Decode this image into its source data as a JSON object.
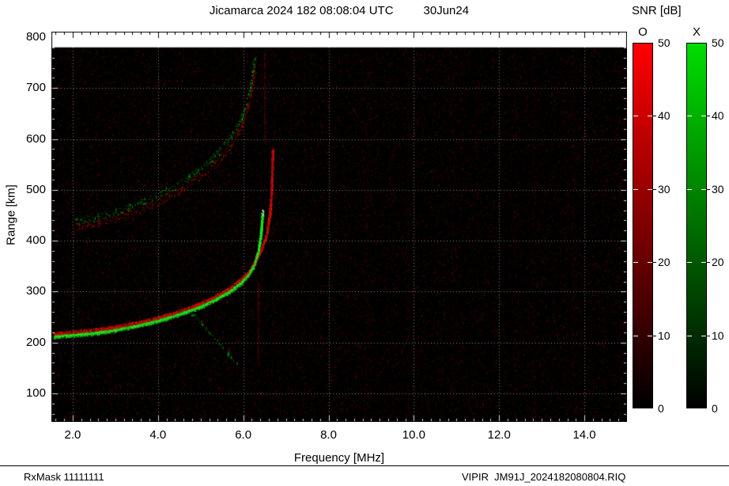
{
  "header": {
    "title_left": "Jicamarca 2024 182 08:08:04 UTC",
    "title_right": "30Jun24"
  },
  "axes": {
    "x_title": "Frequency [MHz]",
    "y_title": "Range [km]"
  },
  "colorbar_panel": {
    "title": "SNR [dB]",
    "bars": [
      {
        "label": "O",
        "low_color": "#000000",
        "high_color": "#ff0000",
        "min": 0,
        "max": 50,
        "ticks": [
          0,
          10,
          20,
          30,
          40,
          50
        ]
      },
      {
        "label": "X",
        "low_color": "#000000",
        "high_color": "#00dd00",
        "min": 0,
        "max": 50,
        "ticks": [
          0,
          10,
          20,
          30,
          40,
          50
        ]
      }
    ]
  },
  "footer": {
    "left": "RxMask 11111111",
    "right": "VIPIR  JM91J_2024182080804.RIQ"
  },
  "chart_data": {
    "type": "heatmap",
    "title": "Jicamarca 2024 182 08:08:04 UTC 30Jun24",
    "xlabel": "Frequency [MHz]",
    "ylabel": "Range [km]",
    "xlim": [
      1.5,
      15.0
    ],
    "ylim": [
      44,
      800
    ],
    "x_ticks": [
      2.0,
      4.0,
      6.0,
      8.0,
      10.0,
      12.0,
      14.0
    ],
    "x_tick_labels": [
      "2.0",
      "4.0",
      "6.0",
      "8.0",
      "10.0",
      "12.0",
      "14.0"
    ],
    "y_ticks": [
      100,
      200,
      300,
      400,
      500,
      600,
      700,
      800
    ],
    "y_tick_labels": [
      "100",
      "200",
      "300",
      "400",
      "500",
      "600",
      "700",
      "800"
    ],
    "background": "#000000",
    "grid": {
      "show": true,
      "color": "#ffffff",
      "style": "dotted"
    },
    "data_top_km": 780,
    "snr_scale": {
      "min": 0,
      "max": 50,
      "units": "dB",
      "o_color": "#ff0000",
      "x_color": "#00dd00"
    },
    "series": [
      {
        "name": "X-mode main trace",
        "mode": "X",
        "color": "green",
        "thickness": 5,
        "density": 7,
        "points": [
          [
            1.55,
            212
          ],
          [
            2.0,
            215
          ],
          [
            2.5,
            219
          ],
          [
            3.0,
            225
          ],
          [
            3.5,
            233
          ],
          [
            4.0,
            243
          ],
          [
            4.5,
            256
          ],
          [
            5.0,
            271
          ],
          [
            5.4,
            287
          ],
          [
            5.7,
            302
          ],
          [
            5.95,
            318
          ],
          [
            6.1,
            332
          ],
          [
            6.25,
            352
          ],
          [
            6.35,
            378
          ],
          [
            6.41,
            410
          ],
          [
            6.44,
            440
          ],
          [
            6.45,
            456
          ]
        ]
      },
      {
        "name": "O-mode main trace",
        "mode": "O",
        "color": "red",
        "thickness": 4,
        "density": 5,
        "points": [
          [
            1.55,
            218
          ],
          [
            2.0,
            221
          ],
          [
            2.5,
            225
          ],
          [
            3.0,
            231
          ],
          [
            3.5,
            239
          ],
          [
            4.0,
            249
          ],
          [
            4.5,
            262
          ],
          [
            5.0,
            277
          ],
          [
            5.4,
            293
          ],
          [
            5.7,
            308
          ],
          [
            5.95,
            325
          ],
          [
            6.15,
            342
          ],
          [
            6.3,
            362
          ],
          [
            6.45,
            388
          ],
          [
            6.55,
            415
          ],
          [
            6.62,
            450
          ],
          [
            6.66,
            495
          ],
          [
            6.68,
            540
          ],
          [
            6.69,
            582
          ]
        ]
      },
      {
        "name": "X-mode second hop",
        "mode": "X",
        "color": "green-dim",
        "thickness": 9,
        "density": 1.0,
        "points": [
          [
            2.05,
            438
          ],
          [
            2.5,
            446
          ],
          [
            3.0,
            457
          ],
          [
            3.5,
            471
          ],
          [
            4.0,
            489
          ],
          [
            4.5,
            512
          ],
          [
            5.0,
            541
          ],
          [
            5.4,
            572
          ],
          [
            5.7,
            602
          ],
          [
            5.95,
            638
          ],
          [
            6.1,
            676
          ],
          [
            6.2,
            716
          ],
          [
            6.26,
            758
          ]
        ]
      },
      {
        "name": "O-mode second hop",
        "mode": "O",
        "color": "red-dim",
        "thickness": 9,
        "density": 1.0,
        "points": [
          [
            2.05,
            427
          ],
          [
            2.5,
            434
          ],
          [
            3.0,
            445
          ],
          [
            3.5,
            459
          ],
          [
            4.0,
            476
          ],
          [
            4.5,
            498
          ],
          [
            5.0,
            527
          ],
          [
            5.4,
            557
          ],
          [
            5.7,
            587
          ],
          [
            5.95,
            622
          ],
          [
            6.1,
            660
          ],
          [
            6.2,
            700
          ],
          [
            6.26,
            742
          ]
        ]
      },
      {
        "name": "descending spur",
        "mode": "X",
        "color": "green-dim",
        "thickness": 3,
        "density": 0.6,
        "points": [
          [
            4.75,
            262
          ],
          [
            5.0,
            240
          ],
          [
            5.2,
            221
          ],
          [
            5.45,
            197
          ],
          [
            5.7,
            173
          ],
          [
            5.85,
            158
          ]
        ]
      }
    ],
    "highlight": {
      "name": "X-trace cusp",
      "f": 6.45,
      "km": 456,
      "color": "#ffffff"
    },
    "faint_columns": [
      {
        "f": 6.5,
        "range": [
          590,
          770
        ]
      },
      {
        "f": 6.35,
        "range": [
          160,
          320
        ]
      }
    ],
    "noise": {
      "speckles": 26000,
      "stripe_columns": 70,
      "palette": [
        "#3a0000",
        "#002a00",
        "#5a0800"
      ]
    }
  }
}
